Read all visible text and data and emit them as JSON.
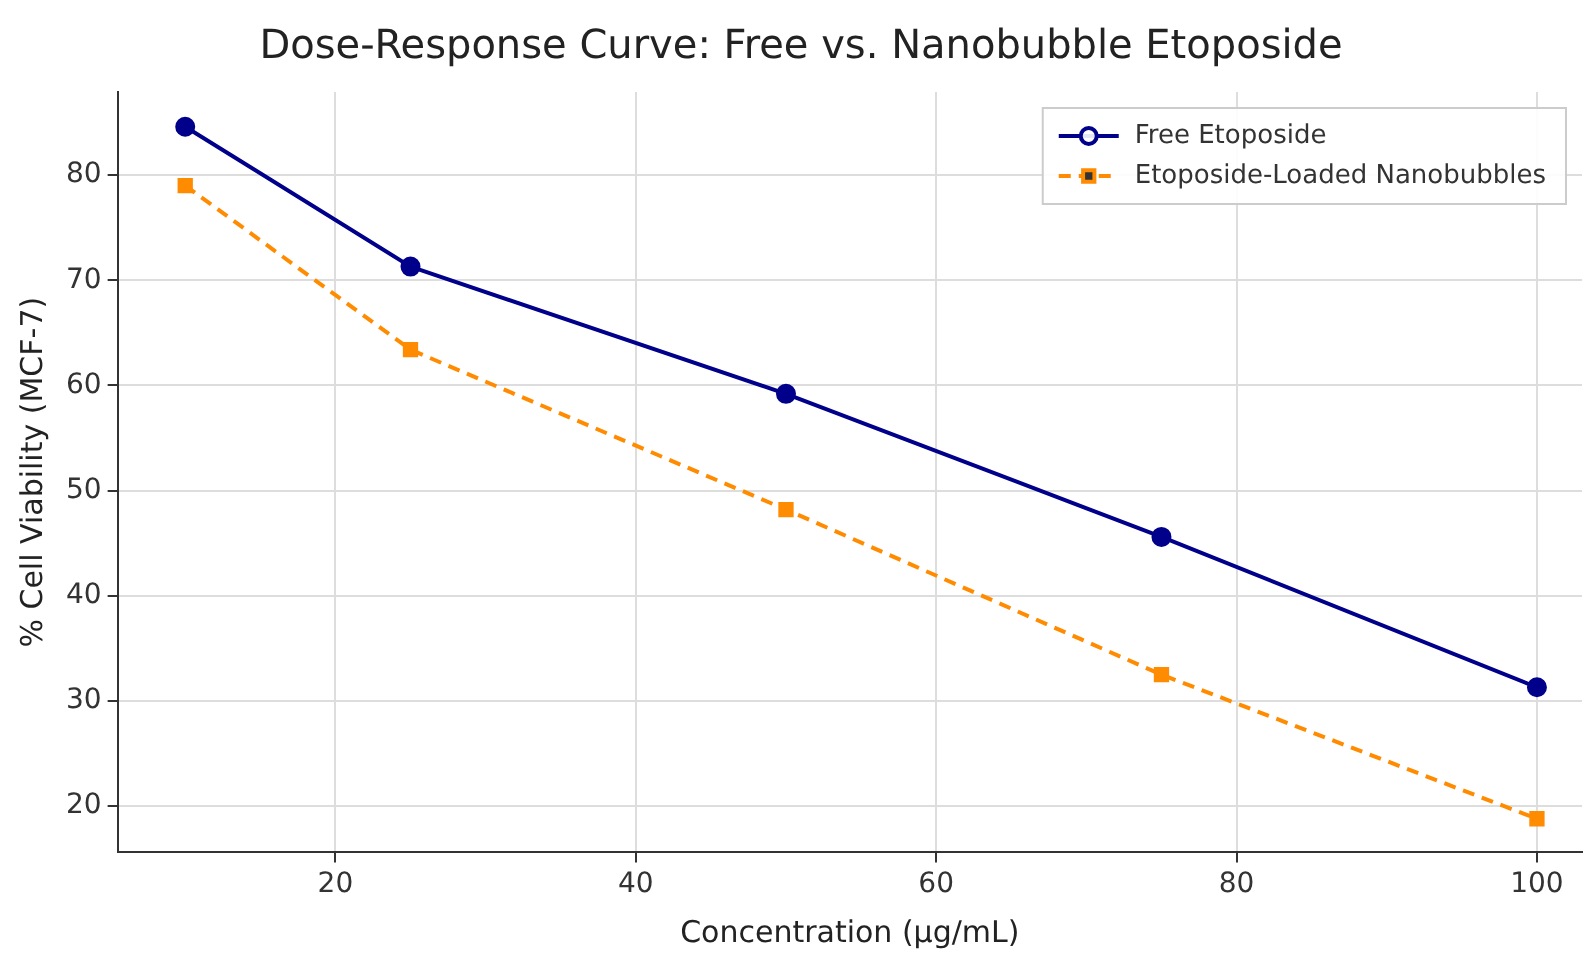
{
  "chart_data": {
    "type": "line",
    "title": "Dose-Response Curve: Free vs. Nanobubble Etoposide",
    "xlabel": "Concentration (µg/mL)",
    "ylabel": "% Cell Viability (MCF-7)",
    "x": [
      10,
      25,
      50,
      75,
      100
    ],
    "series": [
      {
        "name": "Free Etoposide",
        "color": "#00008b",
        "values": [
          84.6,
          71.3,
          59.2,
          45.6,
          31.3
        ],
        "marker": "circle",
        "line_style": "solid"
      },
      {
        "name": "Etoposide-Loaded Nanobubbles",
        "color": "#ff8c00",
        "values": [
          79.0,
          63.4,
          48.2,
          32.5,
          18.8
        ],
        "marker": "square",
        "line_style": "dashed"
      }
    ],
    "xlim": [
      5.5,
      103
    ],
    "ylim": [
      15.6,
      87.9
    ],
    "xticks": [
      20,
      40,
      60,
      80,
      100
    ],
    "yticks": [
      20,
      30,
      40,
      50,
      60,
      70,
      80
    ],
    "grid": true,
    "legend": "top right"
  }
}
